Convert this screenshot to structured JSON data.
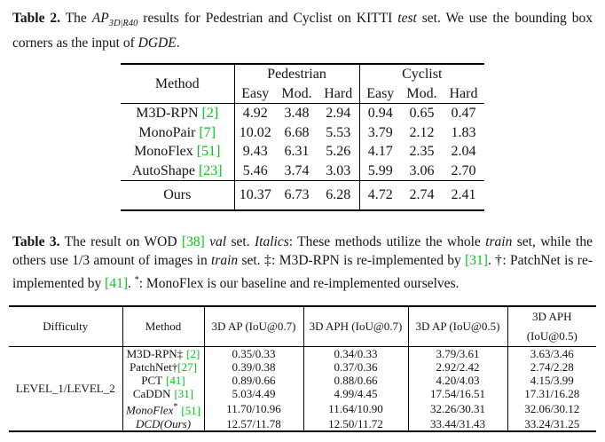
{
  "colors": {
    "citation": "#00c41d",
    "text": "#141414",
    "rule": "#000000",
    "background": "#ffffff"
  },
  "t2cap": {
    "s0": "Table 2.",
    "s1": " The ",
    "s2": "AP",
    "s3": "3D|R40",
    "s4": " results for Pedestrian and Cyclist on KITTI ",
    "s5": "test",
    "s6": " set. We use the bounding box corners as the input of ",
    "s7": "DGDE",
    "s8": "."
  },
  "t2": {
    "h_method": "Method",
    "h_group1": "Pedestrian",
    "h_group2": "Cyclist",
    "h_sub": [
      "Easy",
      "Mod.",
      "Hard",
      "Easy",
      "Mod.",
      "Hard"
    ],
    "rows": [
      {
        "name": "M3D-RPN",
        "cite": "[2]",
        "c": [
          "4.92",
          "3.48",
          "2.94",
          "0.94",
          "0.65",
          "0.47"
        ]
      },
      {
        "name": "MonoPair",
        "cite": "[7]",
        "c": [
          "10.02",
          "6.68",
          "5.53",
          "3.79",
          "2.12",
          "1.83"
        ]
      },
      {
        "name": "MonoFlex",
        "cite": "[51]",
        "c": [
          "9.43",
          "6.31",
          "5.26",
          "4.17",
          "2.35",
          "2.04"
        ]
      },
      {
        "name": "AutoShape",
        "cite": "[23]",
        "c": [
          "5.46",
          "3.74",
          "3.03",
          "5.99",
          "3.06",
          "2.70"
        ]
      }
    ],
    "ours": {
      "name": "Ours",
      "c": [
        "10.37",
        "6.73",
        "6.28",
        "4.72",
        "2.74",
        "2.41"
      ]
    }
  },
  "t3cap": {
    "s0": "Table 3.",
    "s1": " The result on WOD ",
    "s2": "[38]",
    "s3": " val",
    "s4": " set. ",
    "s5": "Italics",
    "s6": ": These methods utilize the whole ",
    "s7": "train",
    "s8": " set, while the others use 1/3 amount of images in ",
    "s9": "train",
    "s10": " set. ‡: M3D-RPN is re-implemented by ",
    "s11": "[31]",
    "s12": ". †: PatchNet is re-implemented by ",
    "s13": "[41]",
    "s14": ". ",
    "s15": "*",
    "s16": ": MonoFlex is our baseline and re-implemented ourselves."
  },
  "t3": {
    "headers": [
      "Difficulty",
      "Method",
      "3D AP (IoU@0.7)",
      "3D APH (IoU@0.7)",
      "3D AP (IoU@0.5)",
      "3D APH (IoU@0.5)"
    ],
    "difficulty": "LEVEL_1/LEVEL_2",
    "rows": [
      {
        "name": "M3D-RPN‡",
        "sup": "",
        "cite": "[2]",
        "c": [
          "0.35/0.33",
          "0.34/0.33",
          "3.79/3.61",
          "3.63/3.46"
        ]
      },
      {
        "name": "PatchNet†",
        "sup": "",
        "cite": "[27]",
        "c": [
          "0.39/0.38",
          "0.37/0.36",
          "2.92/2.42",
          "2.74/2.28"
        ]
      },
      {
        "name": "PCT",
        "sup": "",
        "cite": "[41]",
        "c": [
          "0.89/0.66",
          "0.88/0.66",
          "4.20/4.03",
          "4.15/3.99"
        ]
      },
      {
        "name": "CaDDN",
        "sup": "",
        "cite": "[31]",
        "c": [
          "5.03/4.49",
          "4.99/4.45",
          "17.54/16.51",
          "17.31/16.28"
        ]
      },
      {
        "name": "MonoFlex",
        "sup": "*",
        "cite": "[51]",
        "c": [
          "11.70/10.96",
          "11.64/10.90",
          "32.26/30.31",
          "32.06/30.12"
        ]
      },
      {
        "name": "DCD(Ours)",
        "sup": "",
        "cite": "",
        "c": [
          "12.57/11.78",
          "12.50/11.72",
          "33.44/31.43",
          "33.24/31.25"
        ]
      }
    ]
  }
}
